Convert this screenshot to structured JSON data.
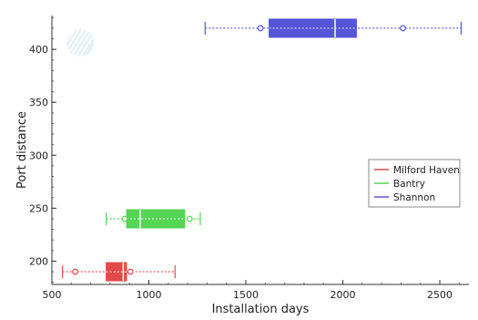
{
  "chart_data": {
    "type": "box",
    "xlabel": "Installation days",
    "ylabel": "Port distance",
    "xlim": [
      500,
      2650
    ],
    "ylim": [
      178,
      432
    ],
    "x_ticks": [
      500,
      1000,
      1500,
      2000,
      2500
    ],
    "y_ticks": [
      200,
      250,
      300,
      350,
      400
    ],
    "orientation": "horizontal",
    "grid": false,
    "legend_position": "right",
    "series": [
      {
        "name": "Milford Haven",
        "color": "#e04a4a",
        "position": 190,
        "whisker_low": 555,
        "q1": 780,
        "median": 868,
        "q3": 885,
        "whisker_high": 1135,
        "outliers": [
          620,
          905
        ]
      },
      {
        "name": "Bantry",
        "color": "#55d455",
        "position": 240,
        "whisker_low": 780,
        "q1": 885,
        "median": 955,
        "q3": 1185,
        "whisker_high": 1265,
        "outliers": [
          875,
          1210
        ]
      },
      {
        "name": "Shannon",
        "color": "#5555d8",
        "position": 420,
        "whisker_low": 1290,
        "q1": 1620,
        "median": 1960,
        "q3": 2070,
        "whisker_high": 2610,
        "outliers": [
          1575,
          2310
        ]
      }
    ]
  }
}
